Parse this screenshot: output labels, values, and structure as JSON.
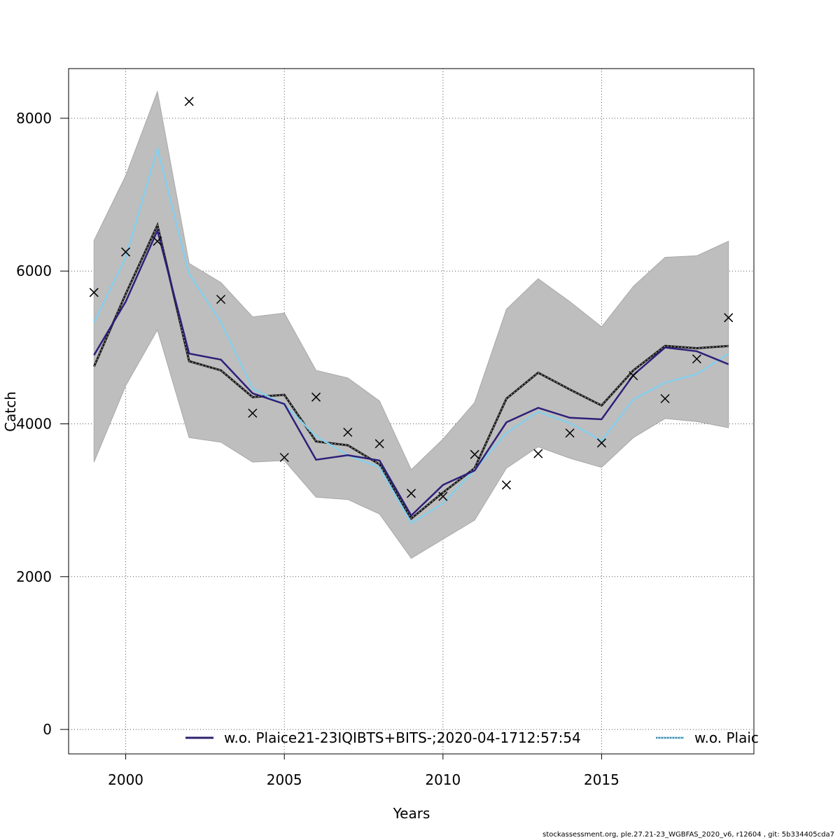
{
  "chart_data": {
    "type": "line",
    "xlabel": "Years",
    "ylabel": "Catch",
    "xlim": [
      1998.2,
      2019.8
    ],
    "ylim": [
      -320,
      8650
    ],
    "x_ticks": [
      2000,
      2005,
      2010,
      2015
    ],
    "y_ticks": [
      0,
      2000,
      4000,
      6000,
      8000
    ],
    "grid": true,
    "x": [
      1999,
      2000,
      2001,
      2002,
      2003,
      2004,
      2005,
      2006,
      2007,
      2008,
      2009,
      2010,
      2011,
      2012,
      2013,
      2014,
      2015,
      2016,
      2017,
      2018,
      2019
    ],
    "confidence_band": {
      "upper": [
        6400,
        7250,
        8350,
        6100,
        5850,
        5400,
        5450,
        4700,
        4600,
        4300,
        3400,
        3800,
        4280,
        5500,
        5900,
        5600,
        5270,
        5800,
        6180,
        6200,
        6390
      ],
      "lower": [
        3500,
        4500,
        5230,
        3820,
        3760,
        3500,
        3520,
        3040,
        3010,
        2820,
        2240,
        2490,
        2740,
        3420,
        3700,
        3550,
        3430,
        3820,
        4070,
        4030,
        3950
      ]
    },
    "series": [
      {
        "name": "w.o. Plaice21-23IQIBTS+BITS-;2020-04-1712:57:54",
        "color": "#2e1f7a",
        "values": [
          4900,
          5600,
          6530,
          4920,
          4840,
          4400,
          4260,
          3530,
          3590,
          3520,
          2800,
          3200,
          3390,
          4020,
          4210,
          4080,
          4060,
          4640,
          5000,
          4950,
          4780
        ]
      },
      {
        "name": "w.o. Plaic",
        "color": "#87ceeb",
        "values": [
          5330,
          6180,
          7600,
          5960,
          5330,
          4460,
          4250,
          3840,
          3590,
          3430,
          2700,
          2960,
          3400,
          3880,
          4160,
          4010,
          3780,
          4320,
          4540,
          4650,
          4920
        ]
      },
      {
        "name": "",
        "color": "#1a1a1a",
        "dashed": true,
        "values": [
          4750,
          5700,
          6600,
          4820,
          4700,
          4350,
          4380,
          3770,
          3720,
          3470,
          2760,
          3100,
          3420,
          4330,
          4670,
          4450,
          4240,
          4700,
          5020,
          4990,
          5020
        ]
      }
    ],
    "observations": {
      "marker": "x",
      "values": [
        5720,
        6250,
        6390,
        8220,
        5630,
        4140,
        3560,
        4350,
        3890,
        3740,
        3090,
        3050,
        3600,
        3200,
        3610,
        3880,
        3750,
        4630,
        4330,
        4850,
        5390
      ]
    },
    "legend": {
      "placement": "bottom",
      "entries": [
        {
          "label": "w.o. Plaice21-23IQIBTS+BITS-;2020-04-1712:57:54",
          "color": "#2e1f7a"
        },
        {
          "label": "w.o. Plaic",
          "color": "#87ceeb"
        }
      ]
    }
  },
  "footer": "stockassessment.org, ple.27.21-23_WGBFAS_2020_v6, r12604 , git: 5b334405cda7"
}
